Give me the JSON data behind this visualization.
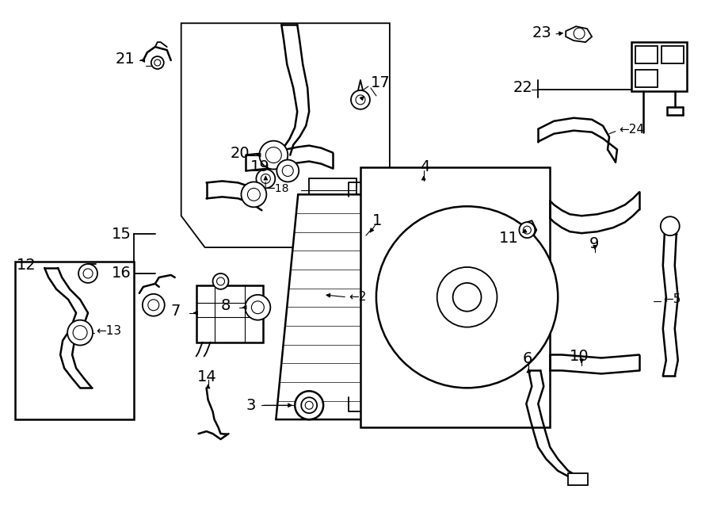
{
  "bg_color": "#ffffff",
  "line_color": "#000000",
  "fig_width": 9.0,
  "fig_height": 6.61,
  "dpi": 100,
  "lw_thin": 0.8,
  "lw_main": 1.3,
  "lw_heavy": 1.8,
  "num_fontsize": 14,
  "small_fontsize": 10
}
